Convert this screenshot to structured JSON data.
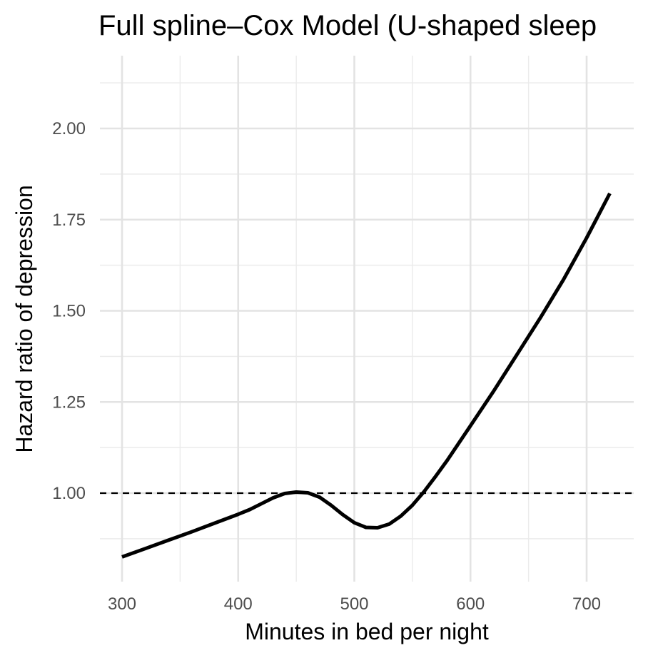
{
  "chart_data": {
    "type": "line",
    "title": "Full spline–Cox Model (U-shaped sleep",
    "xlabel": "Minutes in bed per night",
    "ylabel": "Hazard ratio of depression",
    "xlim": [
      280,
      745
    ],
    "ylim": [
      0.75,
      2.18
    ],
    "x_ticks": [
      300,
      400,
      500,
      600,
      700
    ],
    "x_tick_labels": [
      "300",
      "400",
      "500",
      "600",
      "700"
    ],
    "y_ticks": [
      1.0,
      1.25,
      1.5,
      1.75,
      2.0
    ],
    "y_tick_labels": [
      "1.00",
      "1.25",
      "1.50",
      "1.75",
      "2.00"
    ],
    "x_minor_gridlines": [
      350,
      450,
      550,
      650
    ],
    "y_minor_gridlines": [
      0.875,
      1.125,
      1.375,
      1.625,
      1.875,
      2.125
    ],
    "grid": true,
    "legend": "none",
    "reference_line": {
      "y": 1.0,
      "style": "dashed"
    },
    "series": [
      {
        "color": "#000000",
        "x": [
          300,
          320,
          340,
          360,
          380,
          400,
          410,
          420,
          430,
          440,
          450,
          460,
          470,
          480,
          490,
          500,
          510,
          520,
          530,
          540,
          550,
          560,
          570,
          580,
          600,
          620,
          640,
          660,
          680,
          700,
          720
        ],
        "y": [
          0.825,
          0.848,
          0.871,
          0.894,
          0.918,
          0.942,
          0.955,
          0.971,
          0.987,
          0.999,
          1.003,
          1.001,
          0.989,
          0.967,
          0.941,
          0.919,
          0.906,
          0.905,
          0.915,
          0.937,
          0.967,
          1.004,
          1.046,
          1.09,
          1.185,
          1.28,
          1.38,
          1.48,
          1.585,
          1.7,
          1.822
        ]
      }
    ]
  }
}
